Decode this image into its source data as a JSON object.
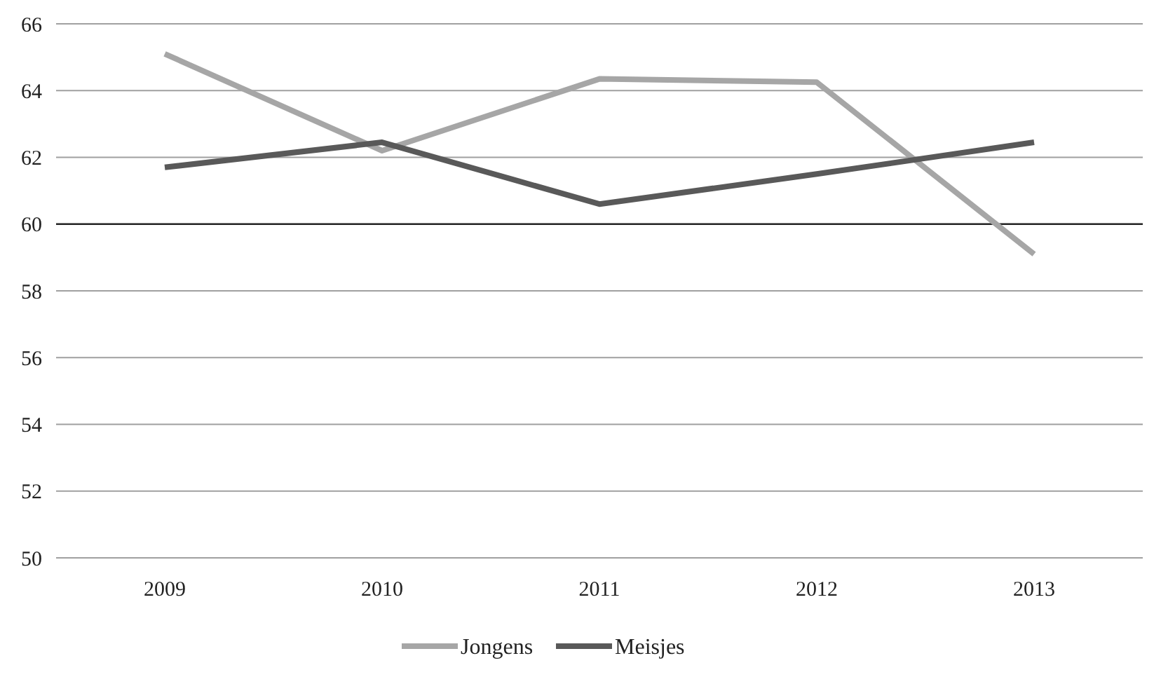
{
  "chart_data": {
    "type": "line",
    "categories": [
      "2009",
      "2010",
      "2011",
      "2012",
      "2013"
    ],
    "series": [
      {
        "name": "Jongens",
        "color": "#a6a6a6",
        "values": [
          65.1,
          62.2,
          64.35,
          64.25,
          59.1
        ]
      },
      {
        "name": "Meisjes",
        "color": "#595959",
        "values": [
          61.7,
          62.45,
          60.6,
          61.5,
          62.45
        ]
      }
    ],
    "ylim": [
      50,
      66
    ],
    "yticks": [
      50,
      52,
      54,
      56,
      58,
      60,
      62,
      64,
      66
    ],
    "grid": "y",
    "legend": "bottom",
    "marker": "none",
    "line_style": "solid",
    "ref_lines": [
      {
        "axis": "y",
        "value": 60,
        "color": "#262626"
      }
    ]
  }
}
